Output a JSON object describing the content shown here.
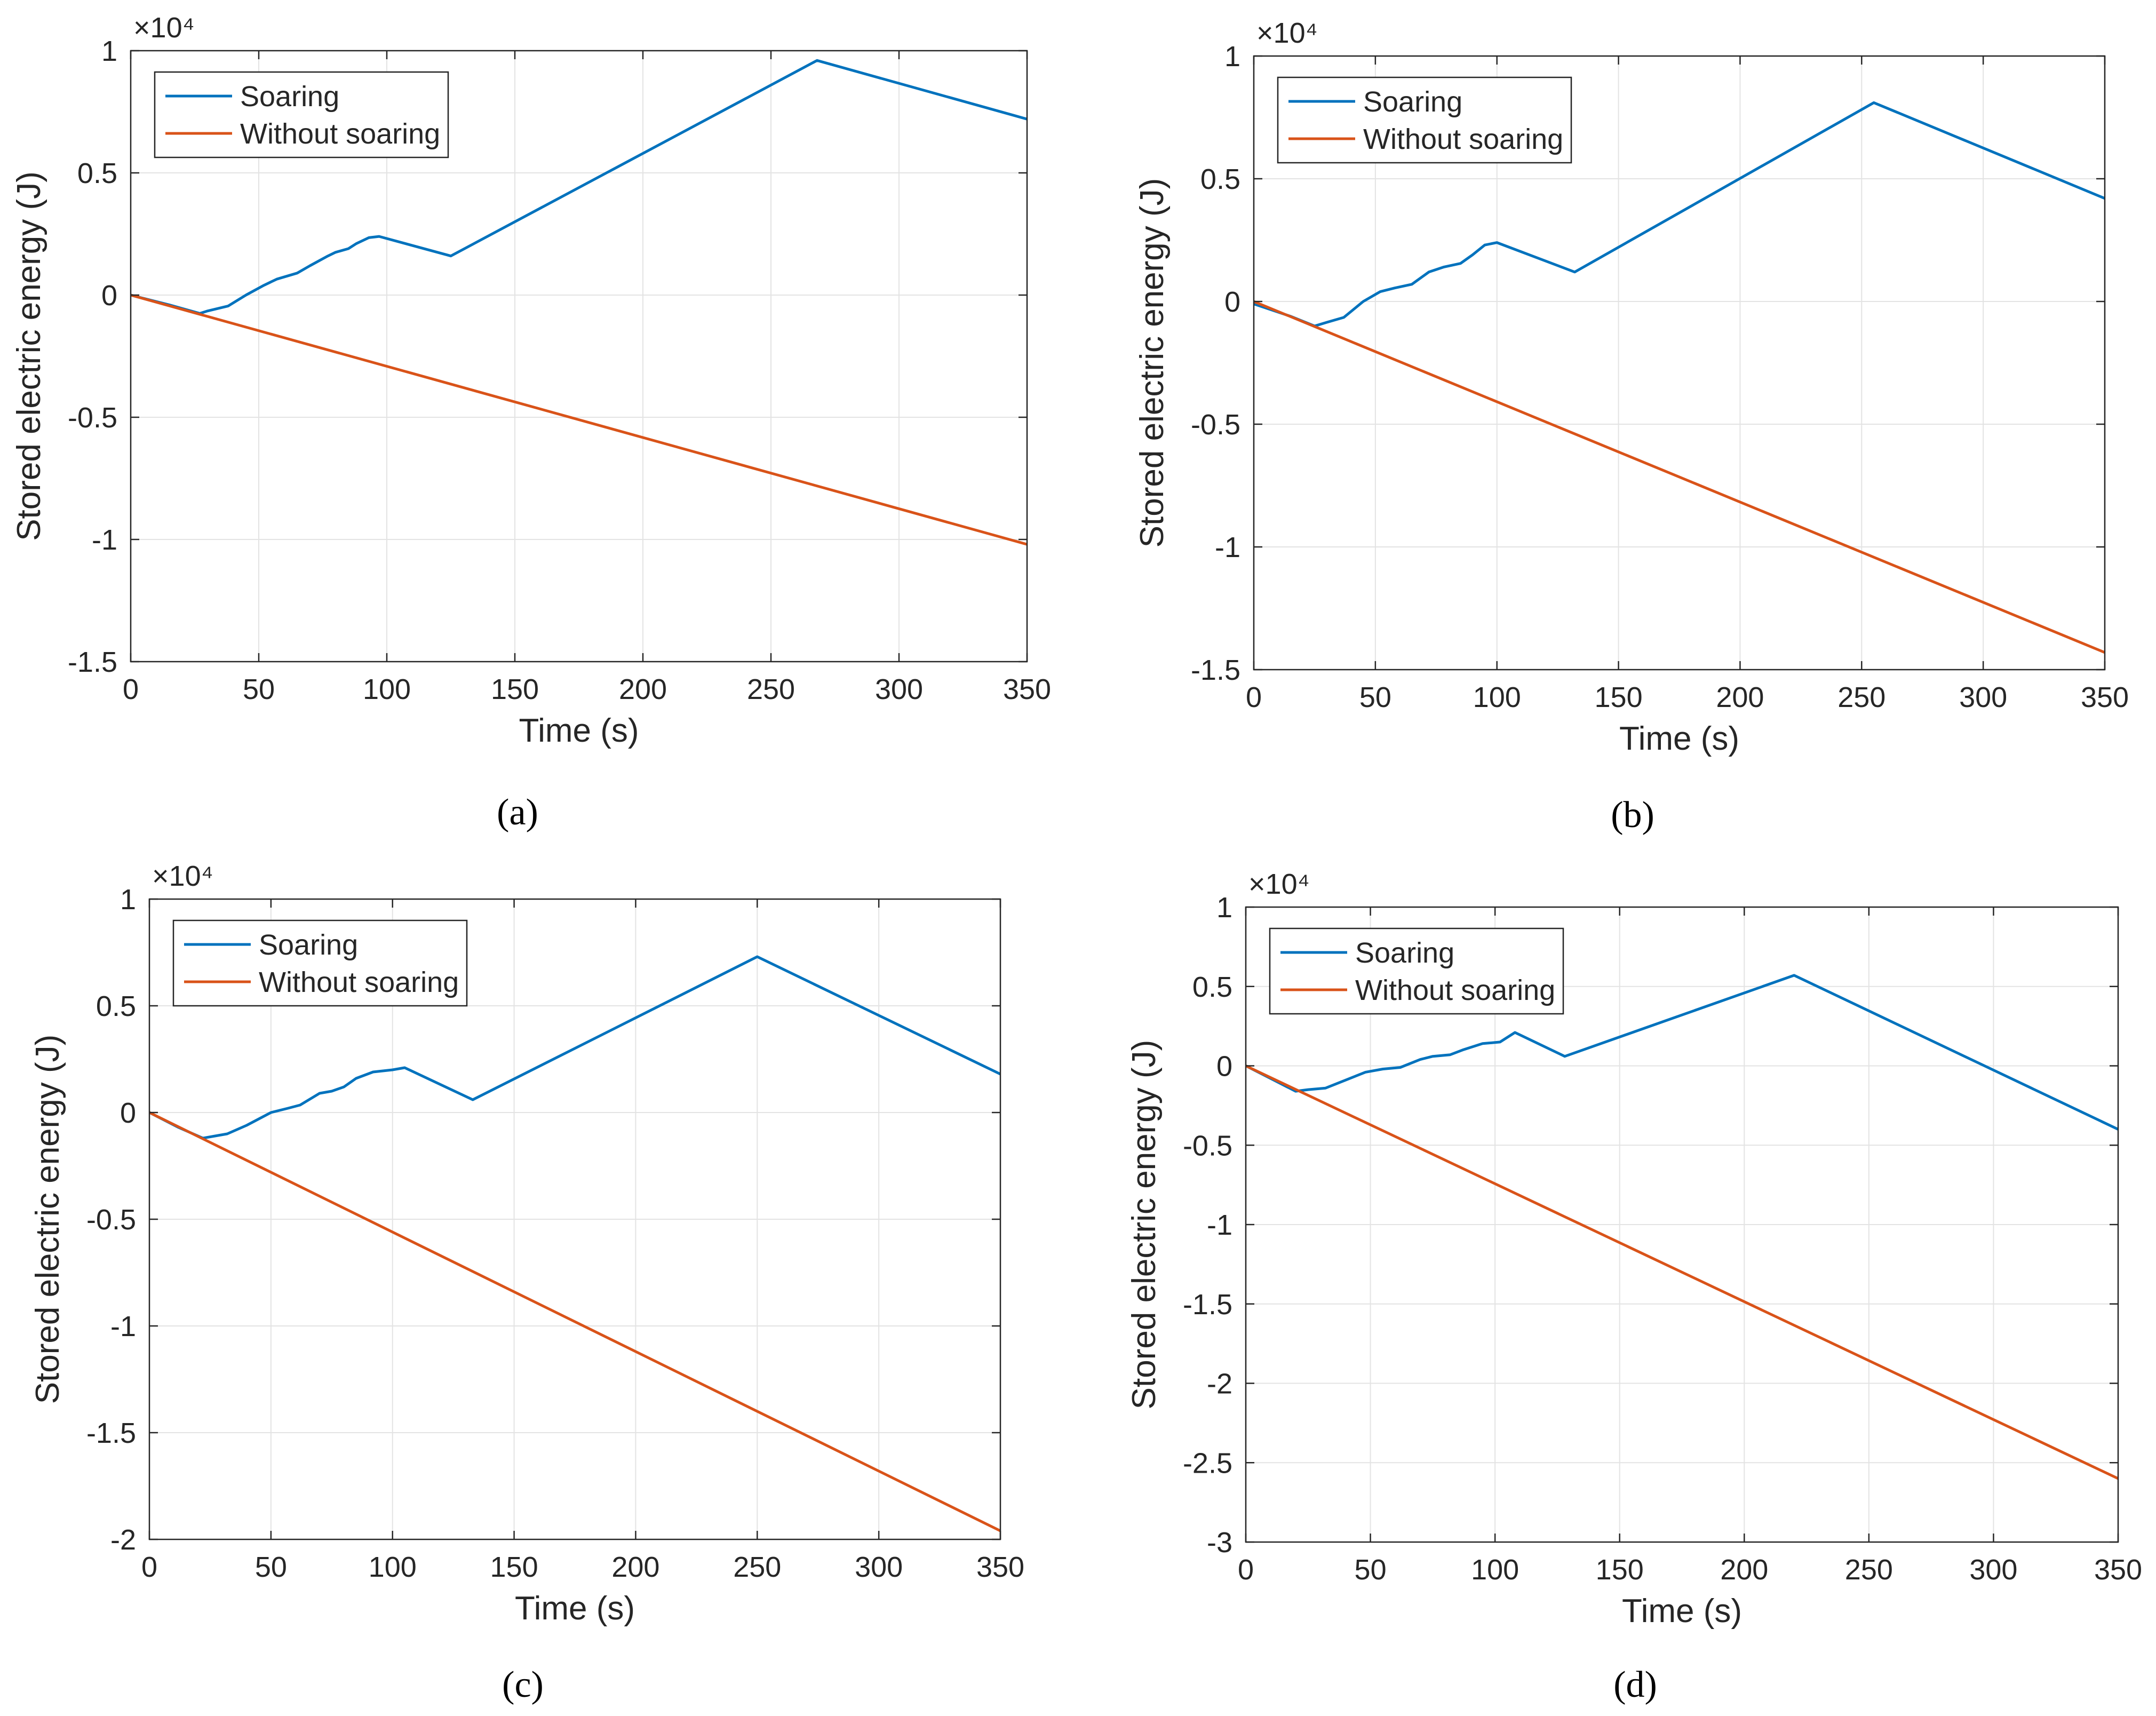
{
  "panel_labels": [
    "(a)",
    "(b)",
    "(c)",
    "(d)"
  ],
  "chart_data": [
    {
      "panel": "a",
      "type": "line",
      "xlabel": "Time (s)",
      "ylabel": "Stored electric energy (J)",
      "exponent_label": "×10⁴",
      "xlim": [
        0,
        350
      ],
      "ylim": [
        -15000,
        10000
      ],
      "xticks": [
        0,
        50,
        100,
        150,
        200,
        250,
        300,
        350
      ],
      "xtick_labels": [
        "0",
        "50",
        "100",
        "150",
        "200",
        "250",
        "300",
        "350"
      ],
      "yticks": [
        -15000,
        -10000,
        -5000,
        0,
        5000,
        10000
      ],
      "ytick_labels": [
        "-1.5",
        "-1",
        "-0.5",
        "0",
        "0.5",
        "1"
      ],
      "grid": true,
      "legend_position": "top-left",
      "series": [
        {
          "name": "Soaring",
          "color": "#0072BD",
          "x": [
            0,
            15,
            27,
            30,
            38,
            45,
            52,
            57,
            65,
            70,
            77,
            80,
            85,
            88,
            93,
            97,
            125,
            268,
            350
          ],
          "y": [
            0,
            -400,
            -750,
            -650,
            -450,
            0,
            400,
            650,
            900,
            1200,
            1600,
            1750,
            1900,
            2100,
            2350,
            2400,
            1600,
            9600,
            7200
          ]
        },
        {
          "name": "Without soaring",
          "color": "#D95319",
          "x": [
            0,
            350
          ],
          "y": [
            0,
            -10200
          ]
        }
      ]
    },
    {
      "panel": "b",
      "type": "line",
      "xlabel": "Time (s)",
      "ylabel": "Stored electric energy (J)",
      "exponent_label": "×10⁴",
      "xlim": [
        0,
        350
      ],
      "ylim": [
        -15000,
        10000
      ],
      "xticks": [
        0,
        50,
        100,
        150,
        200,
        250,
        300,
        350
      ],
      "xtick_labels": [
        "0",
        "50",
        "100",
        "150",
        "200",
        "250",
        "300",
        "350"
      ],
      "yticks": [
        -15000,
        -10000,
        -5000,
        0,
        5000,
        10000
      ],
      "ytick_labels": [
        "-1.5",
        "-1",
        "-0.5",
        "0",
        "0.5",
        "1"
      ],
      "grid": true,
      "legend_position": "top-left",
      "series": [
        {
          "name": "Soaring",
          "color": "#0072BD",
          "x": [
            0,
            15,
            25,
            30,
            37,
            45,
            52,
            58,
            65,
            72,
            78,
            85,
            90,
            95,
            100,
            132,
            255,
            350
          ],
          "y": [
            -100,
            -600,
            -1000,
            -850,
            -650,
            0,
            400,
            550,
            700,
            1200,
            1400,
            1550,
            1900,
            2300,
            2400,
            1200,
            8100,
            4200
          ]
        },
        {
          "name": "Without soaring",
          "color": "#D95319",
          "x": [
            0,
            350
          ],
          "y": [
            0,
            -14300
          ]
        }
      ]
    },
    {
      "panel": "c",
      "type": "line",
      "xlabel": "Time (s)",
      "ylabel": "Stored electric energy (J)",
      "exponent_label": "×10⁴",
      "xlim": [
        0,
        350
      ],
      "ylim": [
        -20000,
        10000
      ],
      "xticks": [
        0,
        50,
        100,
        150,
        200,
        250,
        300,
        350
      ],
      "xtick_labels": [
        "0",
        "50",
        "100",
        "150",
        "200",
        "250",
        "300",
        "350"
      ],
      "yticks": [
        -20000,
        -15000,
        -10000,
        -5000,
        0,
        5000,
        10000
      ],
      "ytick_labels": [
        "-2",
        "-1.5",
        "-1",
        "-0.5",
        "0",
        "0.5",
        "1"
      ],
      "grid": true,
      "legend_position": "top-left",
      "series": [
        {
          "name": "Soaring",
          "color": "#0072BD",
          "x": [
            0,
            12,
            22,
            27,
            32,
            40,
            50,
            57,
            62,
            70,
            75,
            80,
            85,
            92,
            100,
            105,
            133,
            250,
            350
          ],
          "y": [
            0,
            -700,
            -1200,
            -1100,
            -1000,
            -600,
            0,
            200,
            350,
            900,
            1000,
            1200,
            1600,
            1900,
            2000,
            2100,
            600,
            7300,
            1800
          ]
        },
        {
          "name": "Without soaring",
          "color": "#D95319",
          "x": [
            0,
            350
          ],
          "y": [
            0,
            -19600
          ]
        }
      ]
    },
    {
      "panel": "d",
      "type": "line",
      "xlabel": "Time (s)",
      "ylabel": "Stored electric energy (J)",
      "exponent_label": "×10⁴",
      "xlim": [
        0,
        350
      ],
      "ylim": [
        -30000,
        10000
      ],
      "xticks": [
        0,
        50,
        100,
        150,
        200,
        250,
        300,
        350
      ],
      "xtick_labels": [
        "0",
        "50",
        "100",
        "150",
        "200",
        "250",
        "300",
        "350"
      ],
      "yticks": [
        -30000,
        -25000,
        -20000,
        -15000,
        -10000,
        -5000,
        0,
        5000,
        10000
      ],
      "ytick_labels": [
        "-3",
        "-2.5",
        "-2",
        "-1.5",
        "-1",
        "-0.5",
        "0",
        "0.5",
        "1"
      ],
      "grid": true,
      "legend_position": "top-left",
      "series": [
        {
          "name": "Soaring",
          "color": "#0072BD",
          "x": [
            0,
            10,
            20,
            25,
            32,
            40,
            48,
            55,
            62,
            70,
            75,
            82,
            87,
            95,
            102,
            108,
            128,
            220,
            350
          ],
          "y": [
            0,
            -800,
            -1600,
            -1500,
            -1400,
            -900,
            -400,
            -200,
            -100,
            400,
            600,
            700,
            1000,
            1400,
            1500,
            2100,
            600,
            5700,
            -4000
          ]
        },
        {
          "name": "Without soaring",
          "color": "#D95319",
          "x": [
            0,
            350
          ],
          "y": [
            0,
            -26000
          ]
        }
      ]
    }
  ]
}
